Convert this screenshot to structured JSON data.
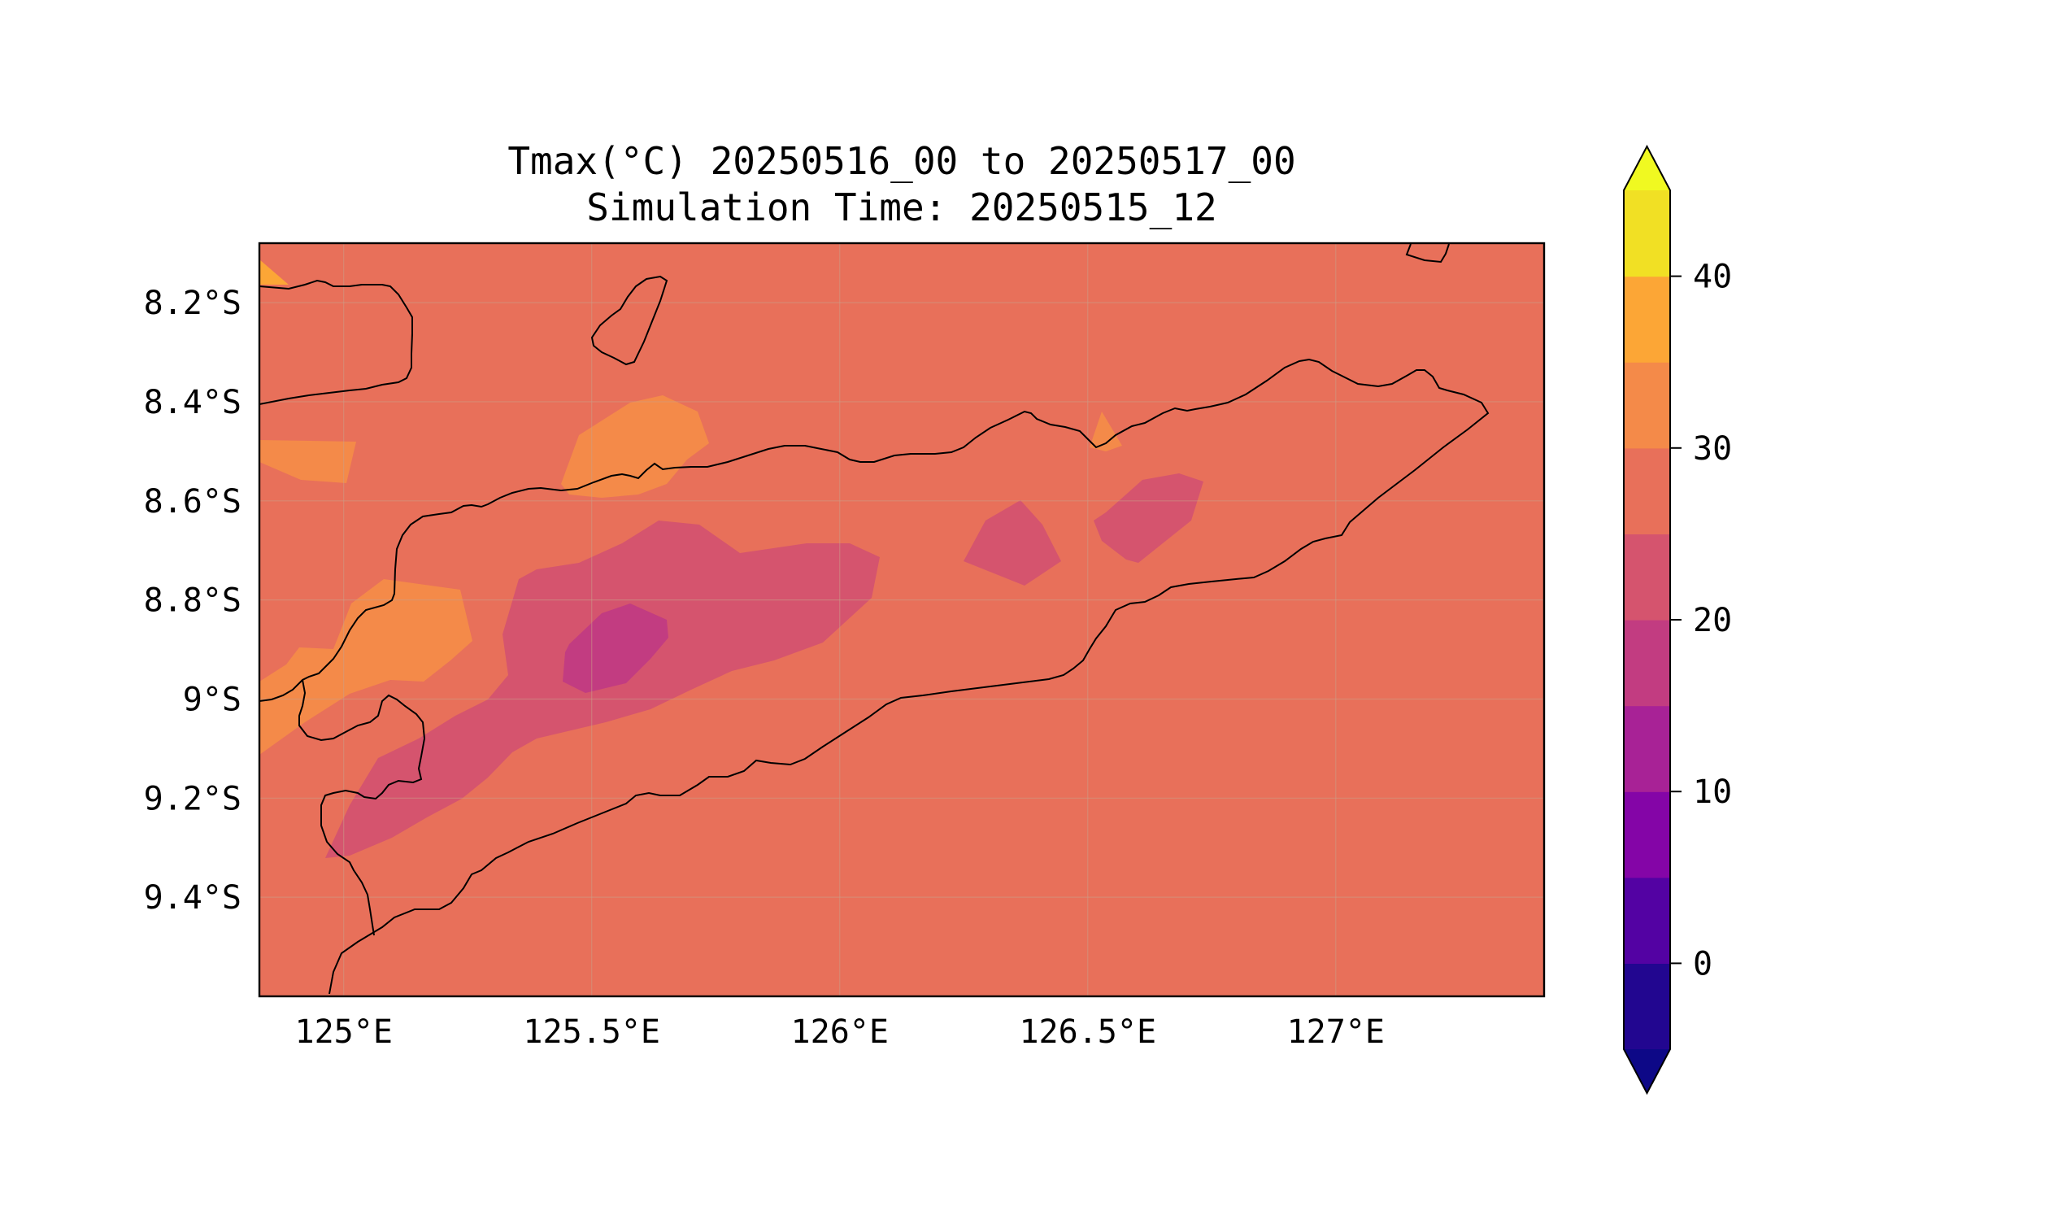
{
  "title": {
    "line1": "Tmax(°C) 20250516_00 to 20250517_00",
    "line2": "Simulation Time: 20250515_12"
  },
  "map": {
    "lon_range": [
      124.83,
      127.42
    ],
    "lat_range": [
      -9.6,
      -8.08
    ],
    "lon_ticks": [
      {
        "value": 125.0,
        "label": "125°E"
      },
      {
        "value": 125.5,
        "label": "125.5°E"
      },
      {
        "value": 126.0,
        "label": "126°E"
      },
      {
        "value": 126.5,
        "label": "126.5°E"
      },
      {
        "value": 127.0,
        "label": "127°E"
      }
    ],
    "lat_ticks": [
      {
        "value": -8.2,
        "label": "8.2°S"
      },
      {
        "value": -8.4,
        "label": "8.4°S"
      },
      {
        "value": -8.6,
        "label": "8.6°S"
      },
      {
        "value": -8.8,
        "label": "8.8°S"
      },
      {
        "value": -9.0,
        "label": "9°S"
      },
      {
        "value": -9.2,
        "label": "9.2°S"
      },
      {
        "value": -9.4,
        "label": "9.4°S"
      }
    ],
    "grid": true,
    "background_value_range": [
      25,
      30
    ],
    "coastline_color": "#000000"
  },
  "colorbar": {
    "colormap": "plasma",
    "levels": [
      -5,
      0,
      5,
      10,
      15,
      20,
      25,
      30,
      35,
      40,
      45
    ],
    "colors": [
      "#220690",
      "#5302a3",
      "#8405a7",
      "#a82296",
      "#c23c81",
      "#d5546e",
      "#e8705a",
      "#f48a49",
      "#fca636",
      "#f1e024"
    ],
    "under_color": "#0d0887",
    "over_color": "#f0f921",
    "extend": "both",
    "ticks": [
      {
        "value": 0,
        "label": "0"
      },
      {
        "value": 10,
        "label": "10"
      },
      {
        "value": 20,
        "label": "20"
      },
      {
        "value": 30,
        "label": "30"
      },
      {
        "value": 40,
        "label": "40"
      }
    ]
  }
}
